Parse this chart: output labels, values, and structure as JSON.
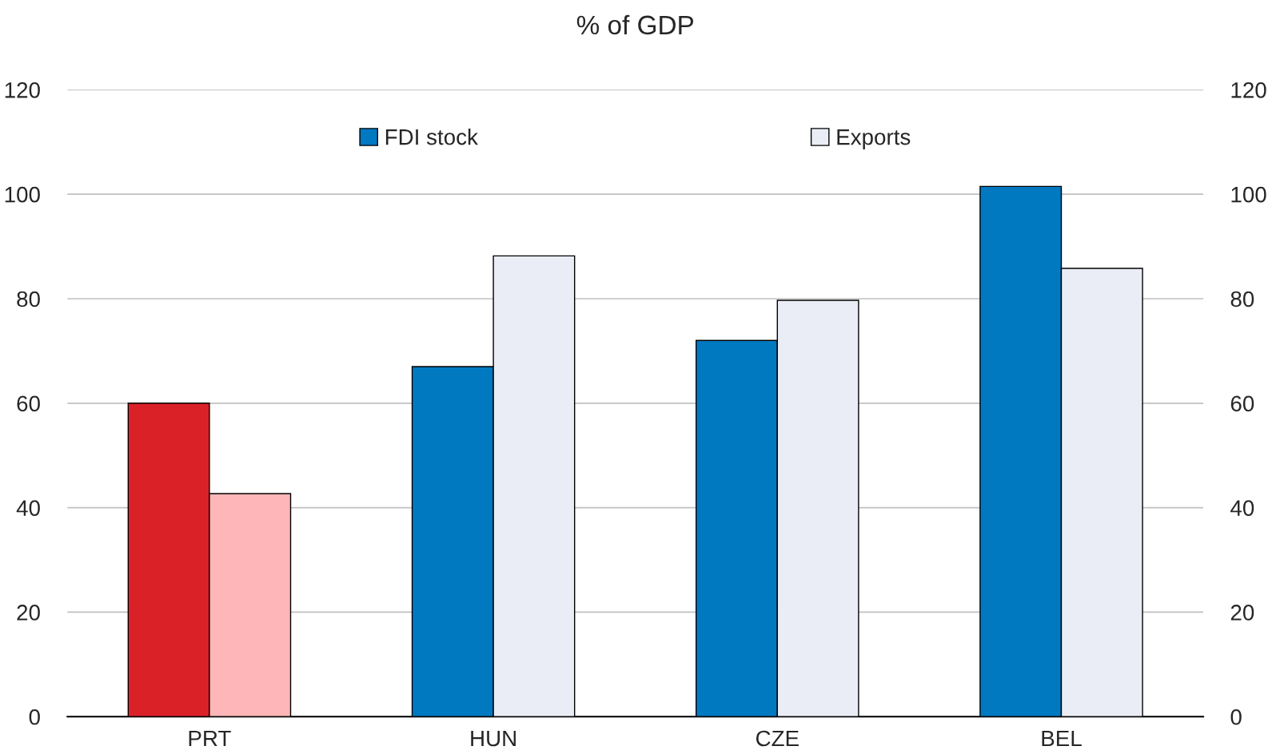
{
  "chart_data": {
    "type": "bar",
    "title": "% of GDP",
    "categories": [
      "PRT",
      "HUN",
      "CZE",
      "BEL"
    ],
    "series": [
      {
        "name": "FDI stock",
        "color": "#0079c1",
        "colors": [
          "#da2128",
          "#0079c1",
          "#0079c1",
          "#0079c1"
        ],
        "values": [
          60,
          67,
          72,
          101.5
        ]
      },
      {
        "name": "Exports",
        "color": "#eaedf5",
        "colors": [
          "#ffb6b8",
          "#eaedf5",
          "#eaedf5",
          "#eaedf5"
        ],
        "values": [
          42.7,
          88.2,
          79.7,
          85.8
        ]
      }
    ],
    "ylim": [
      0,
      120
    ],
    "yticks": [
      0,
      20,
      40,
      60,
      80,
      100,
      120
    ],
    "y2lim": [
      0,
      120
    ],
    "y2ticks": [
      0,
      20,
      40,
      60,
      80,
      100,
      120
    ],
    "grid": "y",
    "legend": "top"
  }
}
